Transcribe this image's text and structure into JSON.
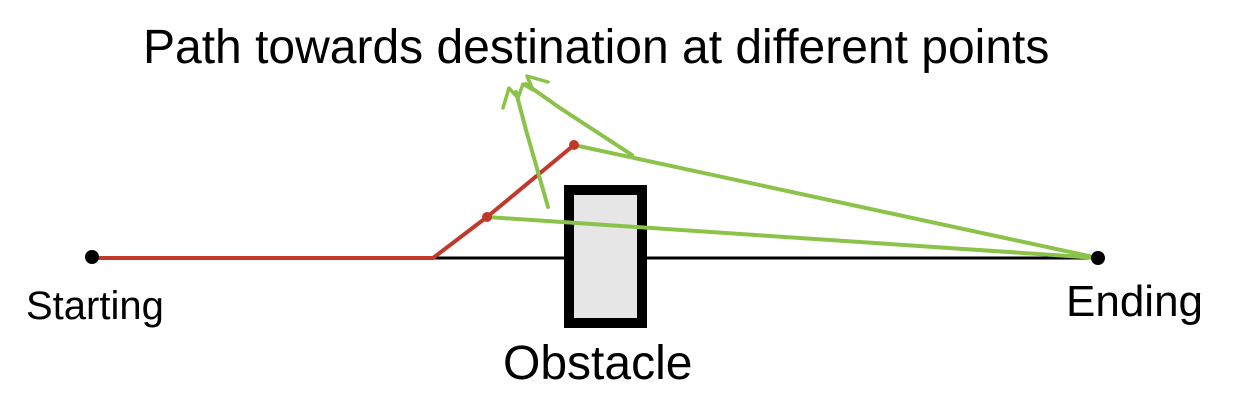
{
  "title": "Path towards destination at different points",
  "labels": {
    "start": "Starting",
    "end": "Ending",
    "obstacle": "Obstacle"
  },
  "colors": {
    "background": "#ffffff",
    "baseline": "#000000",
    "traveled_path": "#c0392b",
    "guidance": "#8bc34a",
    "obstacle_fill": "#e6e6e6",
    "obstacle_stroke": "#000000",
    "text": "#000000"
  }
}
